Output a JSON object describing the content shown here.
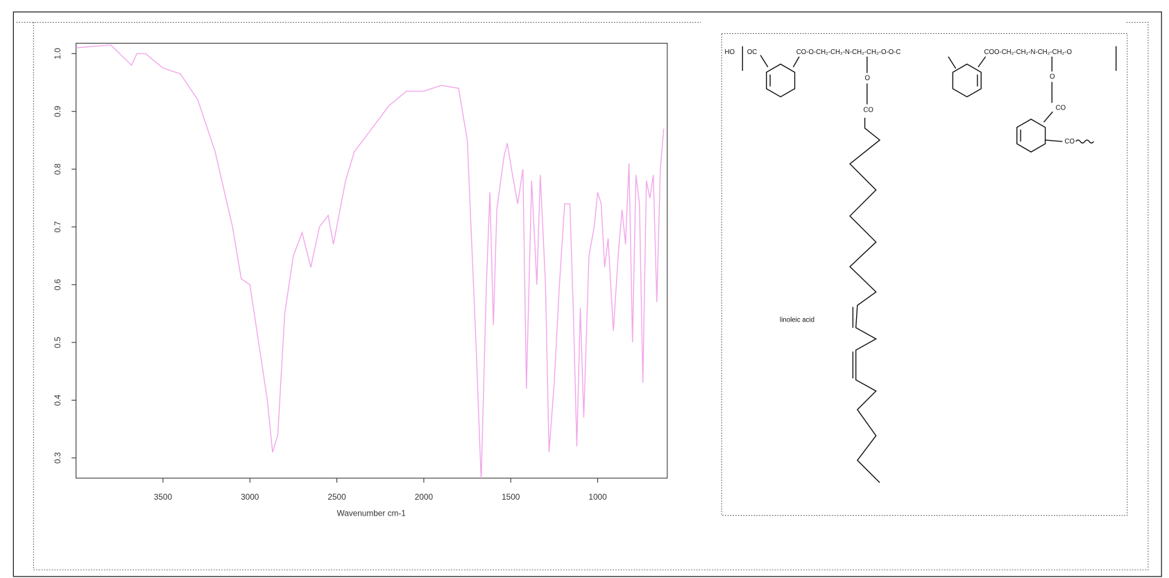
{
  "chart_data": {
    "type": "line",
    "xlabel": "Wavenumber cm-1",
    "color": "#f2a6ea",
    "x": [
      4000,
      3800,
      3681,
      3650,
      3600,
      3500,
      3400,
      3300,
      3200,
      3100,
      3050,
      3000,
      2950,
      2900,
      2870,
      2840,
      2800,
      2750,
      2700,
      2650,
      2600,
      2550,
      2520,
      2450,
      2400,
      2300,
      2200,
      2100,
      2000,
      1900,
      1800,
      1750,
      1700,
      1670,
      1640,
      1620,
      1600,
      1580,
      1540,
      1520,
      1490,
      1460,
      1430,
      1410,
      1380,
      1350,
      1330,
      1300,
      1280,
      1250,
      1220,
      1190,
      1160,
      1140,
      1120,
      1100,
      1080,
      1050,
      1020,
      1000,
      980,
      960,
      940,
      910,
      880,
      860,
      840,
      820,
      800,
      780,
      760,
      740,
      720,
      700,
      680,
      660,
      640,
      620
    ],
    "values": [
      1.01,
      1.015,
      0.98,
      1.0,
      1.0,
      0.975,
      0.965,
      0.92,
      0.83,
      0.7,
      0.61,
      0.6,
      0.5,
      0.4,
      0.31,
      0.34,
      0.55,
      0.65,
      0.69,
      0.63,
      0.7,
      0.72,
      0.67,
      0.78,
      0.83,
      0.87,
      0.91,
      0.935,
      0.935,
      0.945,
      0.94,
      0.85,
      0.5,
      0.26,
      0.6,
      0.76,
      0.53,
      0.73,
      0.82,
      0.845,
      0.79,
      0.74,
      0.8,
      0.42,
      0.78,
      0.6,
      0.79,
      0.6,
      0.31,
      0.43,
      0.6,
      0.74,
      0.74,
      0.55,
      0.32,
      0.56,
      0.37,
      0.65,
      0.7,
      0.76,
      0.74,
      0.63,
      0.68,
      0.52,
      0.66,
      0.73,
      0.67,
      0.81,
      0.5,
      0.79,
      0.74,
      0.43,
      0.78,
      0.75,
      0.79,
      0.57,
      0.8,
      0.87
    ],
    "xlim": [
      4000,
      600
    ],
    "ylim": [
      0.265,
      1.018
    ],
    "xticks": [
      3500,
      3000,
      2500,
      2000,
      1500,
      1000
    ],
    "yticks": [
      0.3,
      0.4,
      0.5,
      0.6,
      0.7,
      0.8,
      0.9,
      {
        "value": 1,
        "label": "1.0"
      }
    ],
    "grid": false
  },
  "structure": {
    "end_left": "HO",
    "carbonyl_left": "OC",
    "linker_1": "CO-O-CH₂-CH₂-N-CH₂-CH₂-O-O-C",
    "linker_2": "COO-CH₂-CH₂-N-CH₂-CH₂-O",
    "branch_1_o": "O",
    "branch_1_co": "CO",
    "branch_2_o": "O",
    "branch_2_co": "CO",
    "branch_2_end": "CO",
    "chain_label": "linoleic acid"
  }
}
